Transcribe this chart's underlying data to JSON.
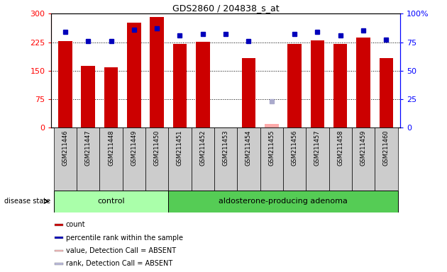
{
  "title": "GDS2860 / 204838_s_at",
  "samples": [
    "GSM211446",
    "GSM211447",
    "GSM211448",
    "GSM211449",
    "GSM211450",
    "GSM211451",
    "GSM211452",
    "GSM211453",
    "GSM211454",
    "GSM211455",
    "GSM211456",
    "GSM211457",
    "GSM211458",
    "GSM211459",
    "GSM211460"
  ],
  "counts": [
    228,
    162,
    159,
    277,
    291,
    220,
    226,
    0,
    183,
    10,
    221,
    229,
    221,
    238,
    183
  ],
  "percentile_ranks": [
    84,
    76,
    76,
    86,
    87,
    81,
    82,
    82,
    76,
    0,
    82,
    84,
    81,
    85,
    77
  ],
  "absent_value": [
    0,
    0,
    0,
    0,
    0,
    0,
    0,
    0,
    0,
    10,
    0,
    0,
    0,
    0,
    0
  ],
  "absent_rank": [
    0,
    0,
    0,
    0,
    0,
    0,
    0,
    0,
    0,
    23,
    0,
    0,
    0,
    0,
    0
  ],
  "detection_absent": [
    false,
    false,
    false,
    false,
    false,
    false,
    false,
    false,
    false,
    true,
    false,
    false,
    false,
    false,
    false
  ],
  "n_control": 5,
  "n_adenoma": 10,
  "left_ylim": [
    0,
    300
  ],
  "right_ylim": [
    0,
    100
  ],
  "left_yticks": [
    0,
    75,
    150,
    225,
    300
  ],
  "right_yticks": [
    0,
    25,
    50,
    75,
    100
  ],
  "right_yticklabels": [
    "0",
    "25",
    "50",
    "75",
    "100%"
  ],
  "grid_lines": [
    75,
    150,
    225
  ],
  "bar_color_present": "#cc0000",
  "bar_color_absent": "#ffaaaa",
  "rank_color_present": "#0000bb",
  "rank_color_absent": "#aaaacc",
  "control_bg": "#aaffaa",
  "adenoma_bg": "#55cc55",
  "sample_col_bg": "#cccccc",
  "group_label_control": "control",
  "group_label_adenoma": "aldosterone-producing adenoma",
  "disease_state_label": "disease state",
  "legend_items": [
    {
      "label": "count",
      "color": "#cc0000"
    },
    {
      "label": "percentile rank within the sample",
      "color": "#0000bb"
    },
    {
      "label": "value, Detection Call = ABSENT",
      "color": "#ffbbbb"
    },
    {
      "label": "rank, Detection Call = ABSENT",
      "color": "#bbbbdd"
    }
  ]
}
